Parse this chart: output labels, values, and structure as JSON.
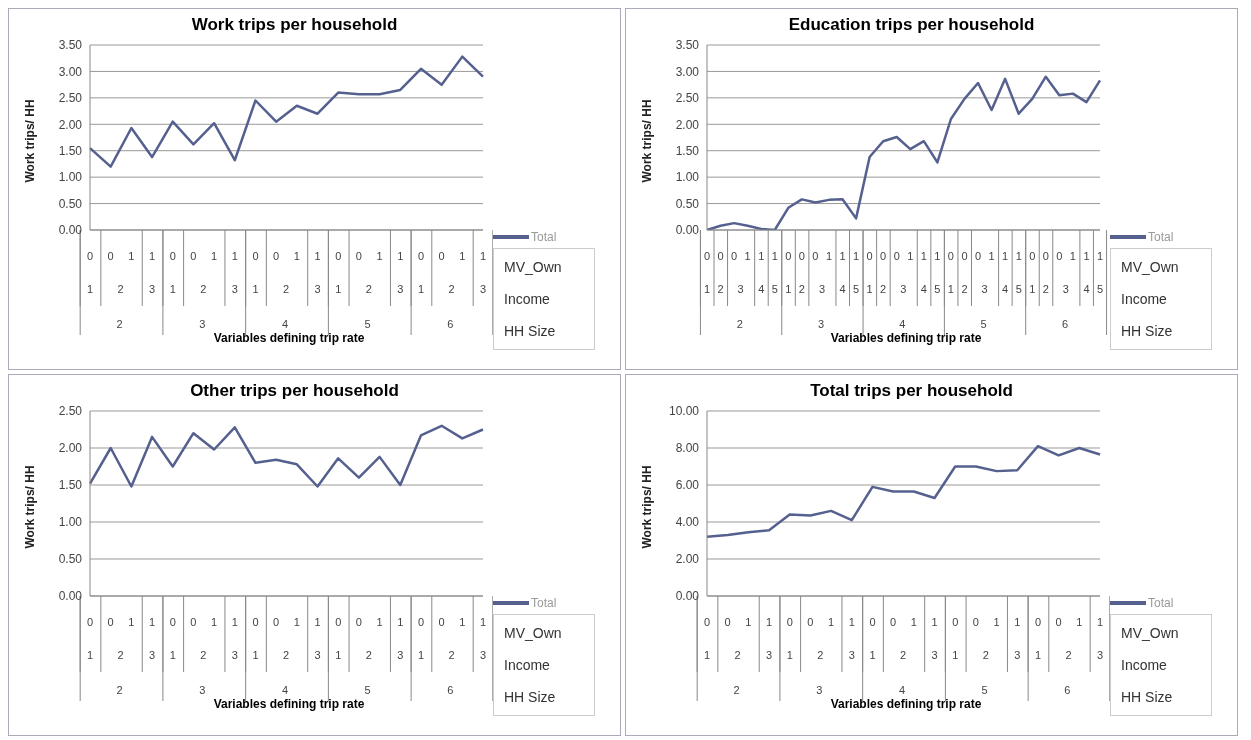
{
  "chart_data": [
    {
      "type": "line",
      "title": "Work trips per household",
      "xlabel": "Variables defining trip rate",
      "ylabel": "Work trips/ HH",
      "categories": [
        "0",
        "0",
        "1",
        "1",
        "0",
        "0",
        "1",
        "1",
        "0",
        "0",
        "1",
        "1",
        "0",
        "0",
        "1",
        "1",
        "0",
        "0",
        "1",
        "1"
      ],
      "series": [
        {
          "name": "Total",
          "color": "#55608f",
          "values": [
            1.55,
            1.2,
            1.93,
            1.38,
            2.05,
            1.62,
            2.02,
            1.32,
            2.45,
            2.05,
            2.35,
            2.2,
            2.6,
            2.57,
            2.57,
            2.65,
            3.05,
            2.75,
            3.28,
            2.9
          ]
        }
      ],
      "ylim": [
        0,
        3.5
      ],
      "yticks": [
        {
          "value": 0,
          "label": "0.00"
        },
        {
          "value": 0.5,
          "label": "0.50"
        },
        {
          "value": 1,
          "label": "1.00"
        },
        {
          "value": 1.5,
          "label": "1.50"
        },
        {
          "value": 2,
          "label": "2.00"
        },
        {
          "value": 2.5,
          "label": "2.50"
        },
        {
          "value": 3,
          "label": "3.00"
        },
        {
          "value": 3.5,
          "label": "3.50"
        }
      ],
      "grid": "y",
      "legend": "right",
      "annotations": [
        "MV_Own",
        "Income",
        "HH Size",
        "1",
        "2",
        "3",
        "1",
        "2",
        "3",
        "1",
        "2",
        "3",
        "1",
        "2",
        "3",
        "1",
        "2",
        "3",
        "2",
        "3",
        "4",
        "5",
        "6"
      ]
    },
    {
      "type": "line",
      "title": "Education trips per household",
      "xlabel": "Variables defining trip rate",
      "ylabel": "Work trips/ HH",
      "categories": [
        "0",
        "0",
        "0",
        "1",
        "1",
        "1",
        "0",
        "0",
        "0",
        "1",
        "1",
        "1",
        "0",
        "0",
        "0",
        "1",
        "1",
        "1",
        "0",
        "0",
        "0",
        "1",
        "1",
        "1",
        "0",
        "0",
        "0",
        "1",
        "1",
        "1"
      ],
      "series": [
        {
          "name": "Total",
          "color": "#55608f",
          "values": [
            0.0,
            0.08,
            0.13,
            0.08,
            0.02,
            0.0,
            0.42,
            0.58,
            0.52,
            0.57,
            0.58,
            0.22,
            1.38,
            1.68,
            1.76,
            1.53,
            1.68,
            1.28,
            2.1,
            2.48,
            2.78,
            2.27,
            2.86,
            2.2,
            2.48,
            2.9,
            2.55,
            2.58,
            2.42,
            2.83
          ]
        }
      ],
      "ylim": [
        0,
        3.5
      ],
      "yticks": [
        {
          "value": 0,
          "label": "0.00"
        },
        {
          "value": 0.5,
          "label": "0.50"
        },
        {
          "value": 1,
          "label": "1.00"
        },
        {
          "value": 1.5,
          "label": "1.50"
        },
        {
          "value": 2,
          "label": "2.00"
        },
        {
          "value": 2.5,
          "label": "2.50"
        },
        {
          "value": 3,
          "label": "3.00"
        },
        {
          "value": 3.5,
          "label": "3.50"
        }
      ],
      "grid": "y",
      "legend": "right",
      "annotations": [
        "MV_Own",
        "Income",
        "HH Size",
        "1",
        "2",
        "3",
        "4",
        "5",
        "1",
        "2",
        "3",
        "4",
        "5",
        "1",
        "2",
        "3",
        "4",
        "5",
        "1",
        "2",
        "3",
        "4",
        "5",
        "1",
        "2",
        "3",
        "4",
        "5",
        "2",
        "3",
        "4",
        "5",
        "6"
      ]
    },
    {
      "type": "line",
      "title": "Other trips per household",
      "xlabel": "Variables defining trip rate",
      "ylabel": "Work trips/ HH",
      "categories": [
        "0",
        "0",
        "1",
        "1",
        "0",
        "0",
        "1",
        "1",
        "0",
        "0",
        "1",
        "1",
        "0",
        "0",
        "1",
        "1",
        "0",
        "0",
        "1",
        "1"
      ],
      "series": [
        {
          "name": "Total",
          "color": "#55608f",
          "values": [
            1.52,
            2.0,
            1.48,
            2.15,
            1.75,
            2.2,
            1.98,
            2.28,
            1.8,
            1.84,
            1.78,
            1.48,
            1.86,
            1.6,
            1.88,
            1.5,
            2.17,
            2.3,
            2.13,
            2.25
          ]
        }
      ],
      "ylim": [
        0,
        2.5
      ],
      "yticks": [
        {
          "value": 0,
          "label": "0.00"
        },
        {
          "value": 0.5,
          "label": "0.50"
        },
        {
          "value": 1,
          "label": "1.00"
        },
        {
          "value": 1.5,
          "label": "1.50"
        },
        {
          "value": 2,
          "label": "2.00"
        },
        {
          "value": 2.5,
          "label": "2.50"
        }
      ],
      "grid": "y",
      "legend": "right",
      "annotations": [
        "MV_Own",
        "Income",
        "HH Size",
        "1",
        "2",
        "3",
        "1",
        "2",
        "3",
        "1",
        "2",
        "3",
        "1",
        "2",
        "3",
        "1",
        "2",
        "3",
        "2",
        "3",
        "4",
        "5",
        "6"
      ]
    },
    {
      "type": "line",
      "title": "Total trips per household",
      "xlabel": "Variables defining trip rate",
      "ylabel": "Work trips/ HH",
      "categories": [
        "0",
        "0",
        "1",
        "1",
        "0",
        "0",
        "1",
        "1",
        "0",
        "0",
        "1",
        "1",
        "0",
        "0",
        "1",
        "1",
        "0",
        "0",
        "1",
        "1"
      ],
      "series": [
        {
          "name": "Total",
          "color": "#55608f",
          "values": [
            3.2,
            3.3,
            3.45,
            3.55,
            4.4,
            4.35,
            4.6,
            4.1,
            5.9,
            5.65,
            5.65,
            5.3,
            7.0,
            7.0,
            6.75,
            6.8,
            8.1,
            7.6,
            8.0,
            7.65
          ]
        }
      ],
      "ylim": [
        0,
        10
      ],
      "yticks": [
        {
          "value": 0,
          "label": "0.00"
        },
        {
          "value": 2,
          "label": "2.00"
        },
        {
          "value": 4,
          "label": "4.00"
        },
        {
          "value": 6,
          "label": "6.00"
        },
        {
          "value": 8,
          "label": "8.00"
        },
        {
          "value": 10,
          "label": "10.00"
        }
      ],
      "grid": "y",
      "legend": "right",
      "annotations": [
        "MV_Own",
        "Income",
        "HH Size",
        "1",
        "2",
        "3",
        "1",
        "2",
        "3",
        "1",
        "2",
        "3",
        "1",
        "2",
        "3",
        "1",
        "2",
        "3",
        "2",
        "3",
        "4",
        "5",
        "6"
      ]
    }
  ]
}
